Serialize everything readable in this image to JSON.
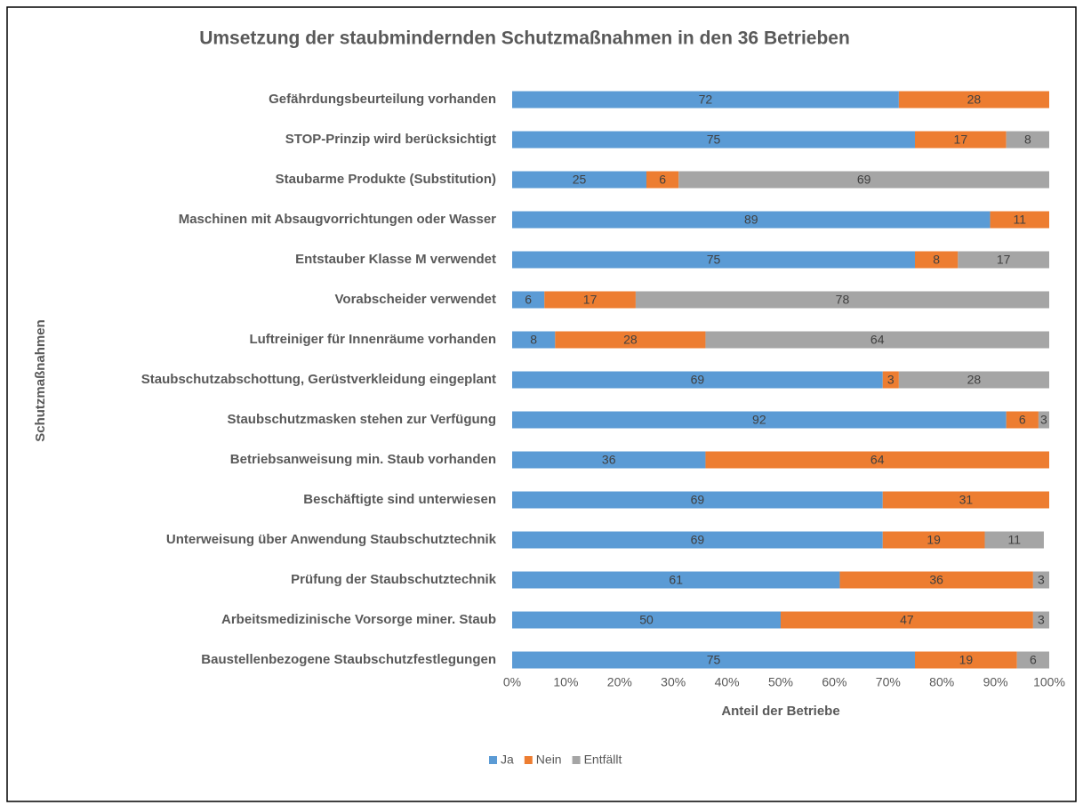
{
  "chart_data": {
    "type": "stacked_bar_horizontal",
    "title": "Umsetzung der staubmindernden Schutzmaßnahmen in den  36 Betrieben",
    "xlabel": "Anteil der Betriebe",
    "ylabel": "Schutzmaßnahmen",
    "categories": [
      "Gefährdungsbeurteilung vorhanden",
      "STOP-Prinzip wird berücksichtigt",
      "Staubarme Produkte (Substitution)",
      "Maschinen mit Absaugvorrichtungen oder Wasser",
      "Entstauber Klasse M verwendet",
      "Vorabscheider verwendet",
      "Luftreiniger für Innenräume vorhanden",
      "Staubschutzabschottung, Gerüstverkleidung eingeplant",
      "Staubschutzmasken stehen zur Verfügung",
      "Betriebsanweisung min. Staub vorhanden",
      "Beschäftigte sind unterwiesen",
      "Unterweisung über Anwendung Staubschutztechnik",
      "Prüfung der Staubschutztechnik",
      "Arbeitsmedizinische Vorsorge miner. Staub",
      "Baustellenbezogene Staubschutzfestlegungen"
    ],
    "series": [
      {
        "name": "Ja",
        "color": "#5b9bd5",
        "values": [
          72,
          75,
          25,
          89,
          75,
          6,
          8,
          69,
          92,
          36,
          69,
          69,
          61,
          50,
          75
        ]
      },
      {
        "name": "Nein",
        "color": "#ed7d31",
        "values": [
          28,
          17,
          6,
          11,
          8,
          17,
          28,
          3,
          6,
          64,
          31,
          19,
          36,
          47,
          19
        ]
      },
      {
        "name": "Entfällt",
        "color": "#a5a5a5",
        "values": [
          null,
          8,
          69,
          null,
          17,
          78,
          64,
          28,
          3,
          null,
          null,
          11,
          3,
          3,
          6
        ]
      }
    ],
    "xlim": [
      0,
      100
    ],
    "xticks": [
      {
        "value": 0,
        "label": "0%"
      },
      {
        "value": 10,
        "label": "10%"
      },
      {
        "value": 20,
        "label": "20%"
      },
      {
        "value": 30,
        "label": "30%"
      },
      {
        "value": 40,
        "label": "40%"
      },
      {
        "value": 50,
        "label": "50%"
      },
      {
        "value": 60,
        "label": "60%"
      },
      {
        "value": 70,
        "label": "70%"
      },
      {
        "value": 80,
        "label": "80%"
      },
      {
        "value": 90,
        "label": "90%"
      },
      {
        "value": 100,
        "label": "100%"
      }
    ],
    "legend": "bottom"
  }
}
